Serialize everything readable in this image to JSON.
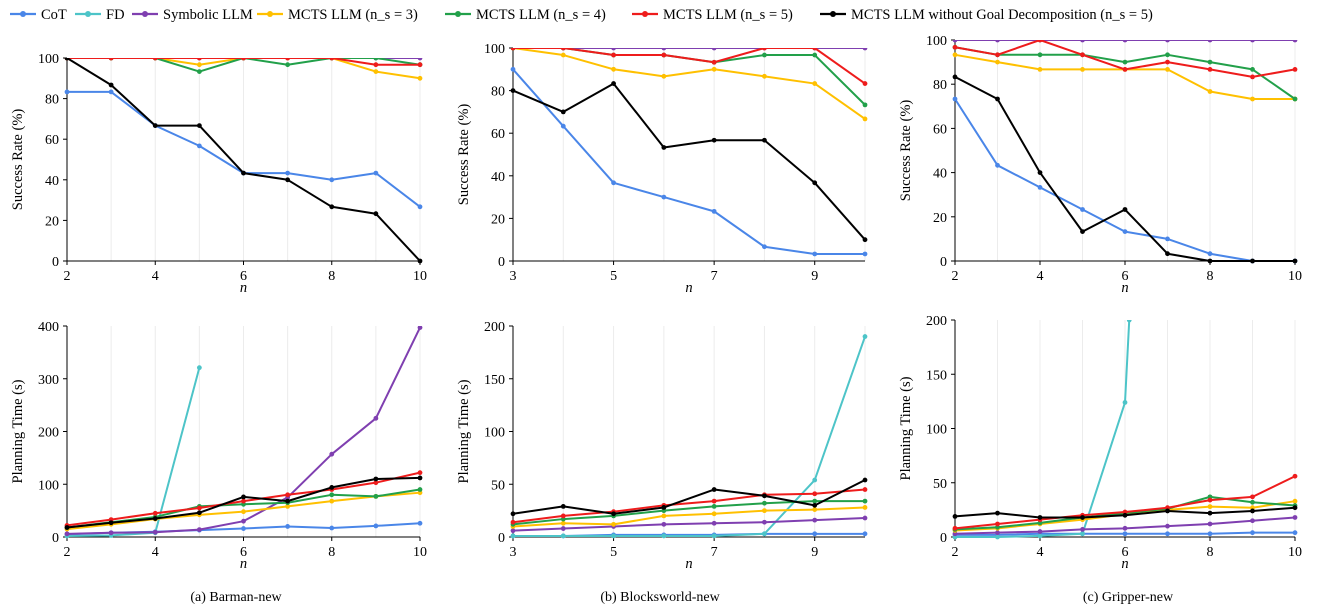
{
  "legend": [
    {
      "name": "CoT",
      "color": "#4A86E8"
    },
    {
      "name": "FD",
      "color": "#4DC4C8"
    },
    {
      "name": "Symbolic LLM",
      "color": "#7F3FB0"
    },
    {
      "name": "MCTS LLM (n_s = 3)",
      "color": "#FFC000"
    },
    {
      "name": "MCTS LLM (n_s = 4)",
      "color": "#22A04A"
    },
    {
      "name": "MCTS LLM (n_s = 5)",
      "color": "#EE1C1C"
    },
    {
      "name": "MCTS LLM without Goal Decomposition (n_s = 5)",
      "color": "#000000"
    }
  ],
  "captions": [
    "(a)  Barman-new",
    "(b)  Blocksworld-new",
    "(c)  Gripper-new"
  ],
  "chart_data": [
    {
      "type": "line",
      "panel": "Barman-new success",
      "xlabel": "n",
      "ylabel": "Success Rate (%)",
      "ylim": [
        0,
        100
      ],
      "xticks": [
        2,
        4,
        6,
        8,
        10
      ],
      "yticks": [
        0,
        20,
        40,
        60,
        80,
        100
      ],
      "x": [
        2,
        3,
        4,
        5,
        6,
        7,
        8,
        9,
        10
      ],
      "series": [
        {
          "name": "CoT",
          "values": [
            83.3,
            83.3,
            66.7,
            56.7,
            43.3,
            43.3,
            40,
            43.3,
            26.7
          ]
        },
        {
          "name": "Symbolic LLM",
          "values": [
            100,
            100,
            100,
            100,
            100,
            100,
            100,
            100,
            100
          ]
        },
        {
          "name": "MCTS LLM (n_s = 3)",
          "values": [
            100,
            100,
            100,
            96.7,
            100,
            100,
            100,
            93.3,
            90
          ]
        },
        {
          "name": "MCTS LLM (n_s = 4)",
          "values": [
            100,
            100,
            100,
            93.3,
            100,
            96.7,
            100,
            100,
            96.7
          ]
        },
        {
          "name": "MCTS LLM (n_s = 5)",
          "values": [
            100,
            100,
            100,
            100,
            100,
            100,
            100,
            96.7,
            96.7
          ]
        },
        {
          "name": "MCTS LLM without Goal Decomposition (n_s = 5)",
          "values": [
            100,
            86.7,
            66.7,
            66.7,
            43.3,
            40,
            26.7,
            23.3,
            0
          ]
        }
      ]
    },
    {
      "type": "line",
      "panel": "Blocksworld-new success",
      "xlabel": "n",
      "ylabel": "Success Rate (%)",
      "ylim": [
        0,
        100
      ],
      "xticks": [
        3,
        5,
        7,
        9
      ],
      "yticks": [
        0,
        20,
        40,
        60,
        80,
        100
      ],
      "x": [
        3,
        4,
        5,
        6,
        7,
        8,
        9,
        10
      ],
      "series": [
        {
          "name": "CoT",
          "values": [
            90,
            63.3,
            36.7,
            30,
            23.3,
            6.7,
            3.3,
            3.3
          ]
        },
        {
          "name": "Symbolic LLM",
          "values": [
            100,
            100,
            100,
            100,
            100,
            100,
            100,
            100
          ]
        },
        {
          "name": "MCTS LLM (n_s = 3)",
          "values": [
            100,
            96.7,
            90,
            86.7,
            90,
            86.7,
            83.3,
            66.7
          ]
        },
        {
          "name": "MCTS LLM (n_s = 4)",
          "values": [
            100,
            100,
            96.7,
            96.7,
            93.3,
            96.7,
            96.7,
            73.3
          ]
        },
        {
          "name": "MCTS LLM (n_s = 5)",
          "values": [
            100,
            100,
            96.7,
            96.7,
            93.3,
            100,
            100,
            83.3
          ]
        },
        {
          "name": "MCTS LLM without Goal Decomposition (n_s = 5)",
          "values": [
            80,
            70,
            83.3,
            53.3,
            56.7,
            56.7,
            36.7,
            10
          ]
        }
      ]
    },
    {
      "type": "line",
      "panel": "Gripper-new success",
      "xlabel": "n",
      "ylabel": "Success Rate (%)",
      "ylim": [
        0,
        100
      ],
      "xticks": [
        2,
        4,
        6,
        8,
        10
      ],
      "yticks": [
        0,
        20,
        40,
        60,
        80,
        100
      ],
      "x": [
        2,
        3,
        4,
        5,
        6,
        7,
        8,
        9,
        10
      ],
      "series": [
        {
          "name": "CoT",
          "values": [
            73.3,
            43.3,
            33.3,
            23.3,
            13.3,
            10,
            3.3,
            0,
            0
          ]
        },
        {
          "name": "Symbolic LLM",
          "values": [
            100,
            100,
            100,
            100,
            100,
            100,
            100,
            100,
            100
          ]
        },
        {
          "name": "MCTS LLM (n_s = 3)",
          "values": [
            93.3,
            90,
            86.7,
            86.7,
            86.7,
            86.7,
            76.7,
            73.3,
            73.3
          ]
        },
        {
          "name": "MCTS LLM (n_s = 4)",
          "values": [
            96.7,
            93.3,
            93.3,
            93.3,
            90,
            93.3,
            90,
            86.7,
            73.3
          ]
        },
        {
          "name": "MCTS LLM (n_s = 5)",
          "values": [
            96.7,
            93.3,
            100,
            93.3,
            86.7,
            90,
            86.7,
            83.3,
            86.7
          ]
        },
        {
          "name": "MCTS LLM without Goal Decomposition (n_s = 5)",
          "values": [
            83.3,
            73.3,
            40,
            13.3,
            23.3,
            3.3,
            0,
            0,
            0
          ]
        }
      ]
    },
    {
      "type": "line",
      "panel": "Barman-new time",
      "xlabel": "n",
      "ylabel": "Planning Time (s)",
      "ylim": [
        0,
        400
      ],
      "xticks": [
        2,
        4,
        6,
        8,
        10
      ],
      "yticks": [
        0,
        100,
        200,
        300,
        400
      ],
      "x": [
        2,
        3,
        4,
        5,
        6,
        7,
        8,
        9,
        10
      ],
      "series": [
        {
          "name": "CoT",
          "values": [
            5,
            8,
            10,
            13,
            16,
            20,
            17,
            21,
            26
          ]
        },
        {
          "name": "FD",
          "x": [
            2,
            3,
            4,
            5
          ],
          "values": [
            2,
            3,
            8,
            321
          ]
        },
        {
          "name": "Symbolic LLM",
          "values": [
            6,
            8,
            9,
            14,
            30,
            75,
            157,
            225,
            397
          ]
        },
        {
          "name": "MCTS LLM (n_s = 3)",
          "values": [
            15,
            24,
            34,
            42,
            48,
            58,
            68,
            77,
            84
          ]
        },
        {
          "name": "MCTS LLM (n_s = 4)",
          "values": [
            18,
            28,
            38,
            58,
            62,
            65,
            80,
            77,
            90
          ]
        },
        {
          "name": "MCTS LLM (n_s = 5)",
          "values": [
            22,
            33,
            45,
            55,
            68,
            80,
            90,
            103,
            122
          ]
        },
        {
          "name": "MCTS LLM without Goal Decomposition (n_s = 5)",
          "values": [
            18,
            27,
            35,
            46,
            76,
            68,
            94,
            110,
            112
          ]
        }
      ]
    },
    {
      "type": "line",
      "panel": "Blocksworld-new time",
      "xlabel": "n",
      "ylabel": "Planning Time (s)",
      "ylim": [
        0,
        200
      ],
      "xticks": [
        3,
        5,
        7,
        9
      ],
      "yticks": [
        0,
        50,
        100,
        150,
        200
      ],
      "x": [
        3,
        4,
        5,
        6,
        7,
        8,
        9,
        10
      ],
      "series": [
        {
          "name": "CoT",
          "values": [
            1,
            1,
            2,
            2,
            2,
            3,
            3,
            3
          ]
        },
        {
          "name": "FD",
          "values": [
            1,
            1,
            1,
            1,
            1,
            3,
            54,
            190
          ]
        },
        {
          "name": "Symbolic LLM",
          "values": [
            6,
            8,
            10,
            12,
            13,
            14,
            16,
            18
          ]
        },
        {
          "name": "MCTS LLM (n_s = 3)",
          "values": [
            10,
            13,
            12,
            20,
            22,
            25,
            26,
            28
          ]
        },
        {
          "name": "MCTS LLM (n_s = 4)",
          "values": [
            12,
            17,
            20,
            25,
            29,
            32,
            34,
            34
          ]
        },
        {
          "name": "MCTS LLM (n_s = 5)",
          "values": [
            14,
            20,
            24,
            30,
            34,
            40,
            41,
            45
          ]
        },
        {
          "name": "MCTS LLM without Goal Decomposition (n_s = 5)",
          "values": [
            22,
            29,
            22,
            28,
            45,
            39,
            30,
            54
          ]
        }
      ]
    },
    {
      "type": "line",
      "panel": "Gripper-new time",
      "xlabel": "n",
      "ylabel": "Planning Time (s)",
      "ylim": [
        0,
        200
      ],
      "xticks": [
        2,
        4,
        6,
        8,
        10
      ],
      "yticks": [
        0,
        50,
        100,
        150,
        200
      ],
      "x": [
        2,
        3,
        4,
        5,
        6,
        7,
        8,
        9,
        10
      ],
      "series": [
        {
          "name": "CoT",
          "values": [
            2,
            2,
            3,
            3,
            3,
            3,
            3,
            4,
            4
          ]
        },
        {
          "name": "FD",
          "x": [
            2,
            3,
            4,
            5,
            6,
            6.1
          ],
          "values": [
            0,
            0,
            1,
            3,
            124,
            200
          ]
        },
        {
          "name": "Symbolic LLM",
          "values": [
            3,
            4,
            5,
            7,
            8,
            10,
            12,
            15,
            18
          ]
        },
        {
          "name": "MCTS LLM (n_s = 3)",
          "values": [
            6,
            8,
            12,
            16,
            21,
            25,
            28,
            27,
            33
          ]
        },
        {
          "name": "MCTS LLM (n_s = 4)",
          "values": [
            7,
            9,
            13,
            18,
            22,
            26,
            37,
            32,
            29
          ]
        },
        {
          "name": "MCTS LLM (n_s = 5)",
          "values": [
            8,
            12,
            16,
            20,
            23,
            27,
            34,
            37,
            56
          ]
        },
        {
          "name": "MCTS LLM without Goal Decomposition (n_s = 5)",
          "values": [
            19,
            22,
            18,
            18,
            20,
            24,
            22,
            24,
            27
          ]
        }
      ]
    }
  ]
}
